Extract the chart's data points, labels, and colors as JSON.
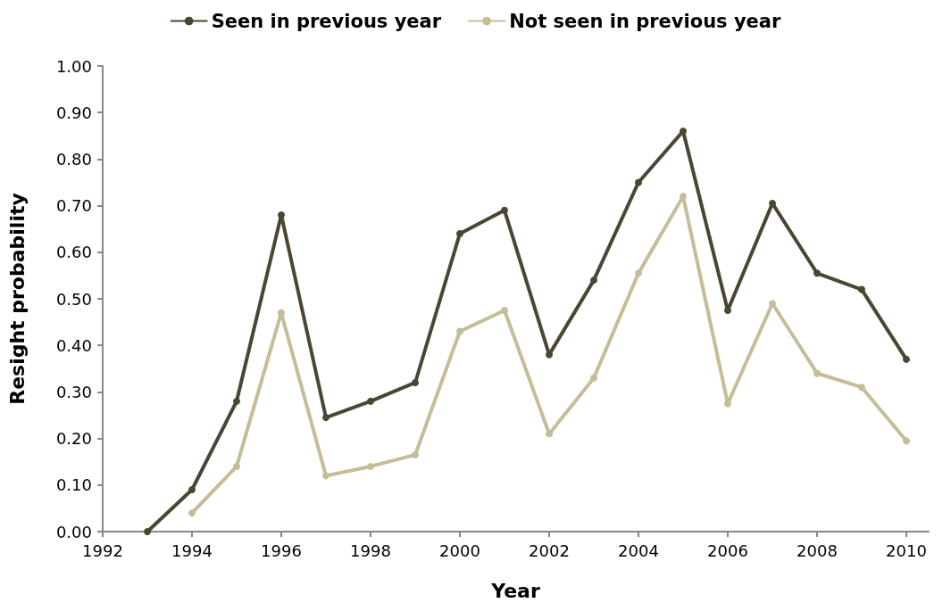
{
  "chart_data": {
    "type": "line",
    "xlabel": "Year",
    "ylabel": "Resight probability",
    "x": [
      1993,
      1994,
      1995,
      1996,
      1997,
      1998,
      1999,
      2000,
      2001,
      2002,
      2003,
      2004,
      2005,
      2006,
      2007,
      2008,
      2009,
      2010
    ],
    "series": [
      {
        "name": "Seen in previous year",
        "color": "#4a4631",
        "values": [
          0.0,
          0.09,
          0.28,
          0.68,
          0.245,
          0.28,
          0.32,
          0.64,
          0.69,
          0.38,
          0.54,
          0.75,
          0.86,
          0.475,
          0.705,
          0.555,
          0.52,
          0.37
        ]
      },
      {
        "name": "Not seen in previous year",
        "color": "#c4bd97",
        "values": [
          null,
          0.04,
          0.14,
          0.47,
          0.12,
          0.14,
          0.165,
          0.43,
          0.475,
          0.21,
          0.33,
          0.555,
          0.72,
          0.275,
          0.49,
          0.34,
          0.31,
          0.195
        ]
      }
    ],
    "xlim": [
      1992,
      2010.5
    ],
    "xticks": [
      1992,
      1994,
      1996,
      1998,
      2000,
      2002,
      2004,
      2006,
      2008,
      2010
    ],
    "ylim": [
      0,
      1
    ],
    "yticks": [
      {
        "value": 0,
        "label": "0.00"
      },
      {
        "value": 0.1,
        "label": "0.10"
      },
      {
        "value": 0.2,
        "label": "0.20"
      },
      {
        "value": 0.3,
        "label": "0.30"
      },
      {
        "value": 0.4,
        "label": "0.40"
      },
      {
        "value": 0.5,
        "label": "0.50"
      },
      {
        "value": 0.6,
        "label": "0.60"
      },
      {
        "value": 0.7,
        "label": "0.70"
      },
      {
        "value": 0.8,
        "label": "0.80"
      },
      {
        "value": 0.9,
        "label": "0.90"
      },
      {
        "value": 1,
        "label": "1.00"
      }
    ],
    "legend": "top",
    "grid": false,
    "marker": "circle",
    "line_style": "solid"
  }
}
